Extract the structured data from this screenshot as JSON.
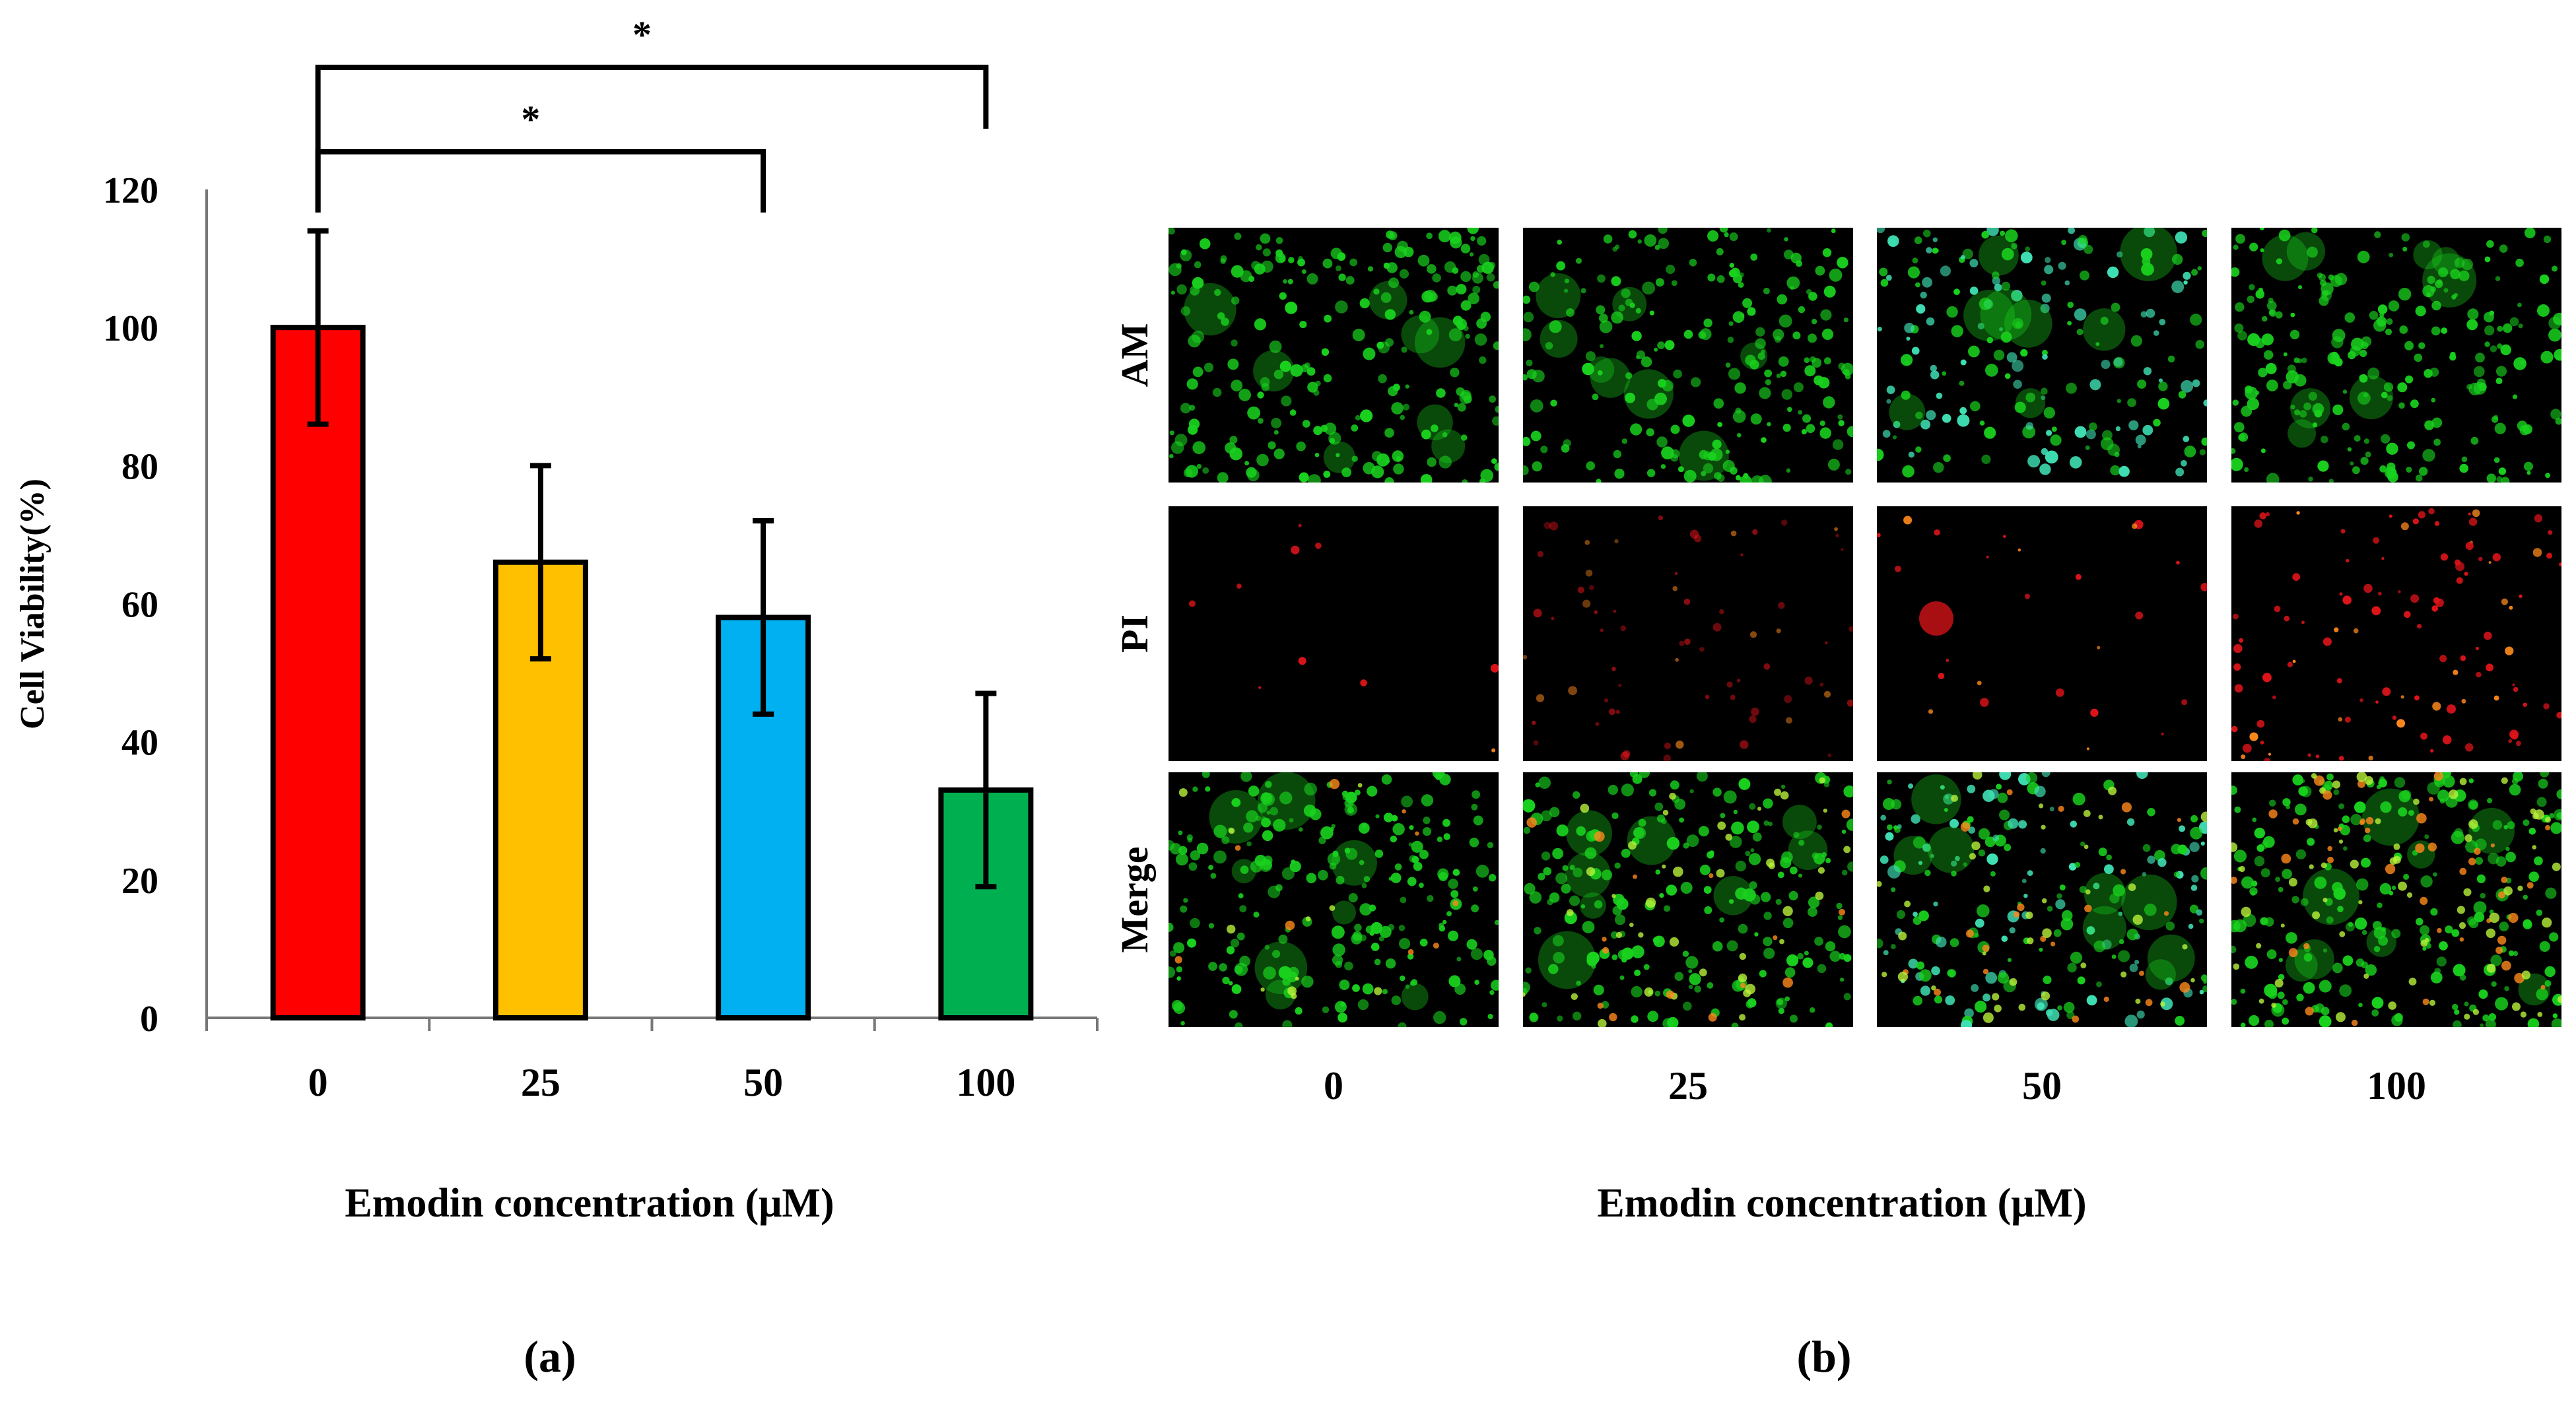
{
  "chart_data": [
    {
      "type": "bar",
      "panel_label": "(a)",
      "title": "",
      "xlabel": "Emodin concentration (μM)",
      "ylabel": "Cell Viability(%)",
      "ylim": [
        0,
        120
      ],
      "yticks": [
        "0",
        "20",
        "40",
        "60",
        "80",
        "100",
        "120"
      ],
      "categories": [
        "0",
        "25",
        "50",
        "100"
      ],
      "values": [
        100,
        66,
        58,
        33
      ],
      "errors": [
        14,
        14,
        14,
        14
      ],
      "colors": [
        "#FF0000",
        "#FFC000",
        "#00B0F0",
        "#00B050"
      ],
      "significance": [
        {
          "from": "0",
          "to": "50",
          "label": "*"
        },
        {
          "from": "0",
          "to": "100",
          "label": "*"
        }
      ]
    },
    {
      "type": "image-grid",
      "panel_label": "(b)",
      "xlabel": "Emodin concentration (μM)",
      "columns": [
        "0",
        "25",
        "50",
        "100"
      ],
      "rows": [
        "AM",
        "PI",
        "Merge"
      ]
    }
  ],
  "colors": {
    "am_green": "#19d21e",
    "am_cyan": "#3fe0b4",
    "pi_red": "#e0141a",
    "pi_orange": "#ff8a1c",
    "merge_yellow": "#b9f23a",
    "bg_black": "#000000"
  }
}
